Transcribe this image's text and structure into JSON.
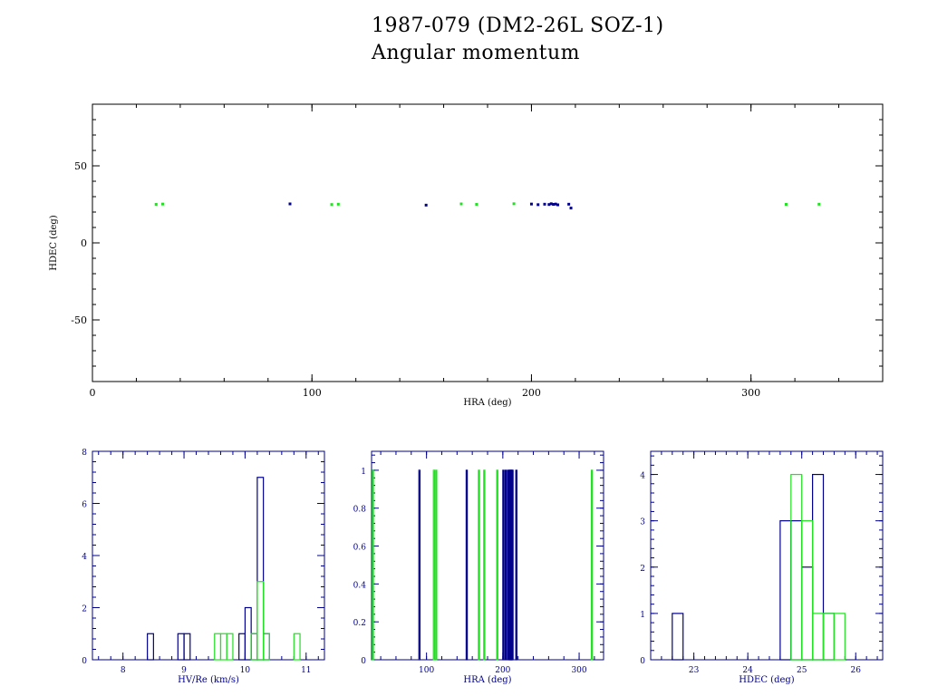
{
  "title": "1987-079 (DM2-26L SOZ-1)",
  "subtitle": "Angular momentum",
  "colors": {
    "series_a": "#00008c",
    "series_b": "#22e022",
    "main_axes": "#000000",
    "hist_axes": "#00008c"
  },
  "chart_data": [
    {
      "id": "scatter",
      "type": "scatter",
      "xlabel": "HRA (deg)",
      "ylabel": "HDEC (deg)",
      "xlim": [
        0,
        360
      ],
      "ylim": [
        -90,
        90
      ],
      "xticks": [
        0,
        100,
        200,
        300
      ],
      "yticks": [
        -50,
        0,
        50
      ],
      "series": [
        {
          "color": "#00008c",
          "x": [
            90,
            152,
            200,
            203,
            206,
            208,
            209,
            210,
            211,
            212,
            217,
            218
          ],
          "y": [
            25.3,
            24.5,
            25.2,
            24.8,
            25.1,
            24.9,
            25.4,
            25.0,
            25.2,
            24.7,
            25.1,
            22.6
          ]
        },
        {
          "color": "#22e022",
          "x": [
            29,
            32,
            109,
            112,
            168,
            175,
            192,
            316,
            331
          ],
          "y": [
            25.0,
            25.2,
            24.9,
            25.1,
            25.3,
            25.0,
            25.4,
            25.0,
            25.1
          ]
        }
      ]
    },
    {
      "id": "hist_hv",
      "type": "bar",
      "xlabel": "HV/Re (km/s)",
      "xlim": [
        7.5,
        11.3
      ],
      "ylim": [
        0,
        8
      ],
      "xticks": [
        8,
        9,
        10,
        11
      ],
      "yticks": [
        0,
        2,
        4,
        6,
        8
      ],
      "bin_width": 0.1,
      "series": [
        {
          "color": "#00008c",
          "bins": [
            [
              8.4,
              1
            ],
            [
              8.9,
              1
            ],
            [
              9.0,
              1
            ],
            [
              9.9,
              1
            ],
            [
              10.0,
              2
            ],
            [
              10.1,
              1
            ],
            [
              10.2,
              7
            ],
            [
              10.3,
              1
            ]
          ]
        },
        {
          "color": "#22e022",
          "bins": [
            [
              9.5,
              1
            ],
            [
              9.6,
              1
            ],
            [
              9.7,
              1
            ],
            [
              10.1,
              1
            ],
            [
              10.2,
              3
            ],
            [
              10.3,
              1
            ],
            [
              10.8,
              1
            ]
          ]
        }
      ]
    },
    {
      "id": "hist_hra",
      "type": "bar",
      "xlabel": "HRA (deg)",
      "xlim": [
        28,
        332
      ],
      "ylim": [
        0,
        1.1
      ],
      "xticks": [
        100,
        200,
        300
      ],
      "yticks": [
        0,
        0.2,
        0.4,
        0.6,
        0.8,
        1
      ],
      "bin_width": 1,
      "series": [
        {
          "color": "#00008c",
          "bins": [
            [
              90,
              1
            ],
            [
              152,
              1
            ],
            [
              200,
              1
            ],
            [
              203,
              1
            ],
            [
              206,
              1
            ],
            [
              208,
              1
            ],
            [
              209,
              1
            ],
            [
              210,
              1
            ],
            [
              211,
              1
            ],
            [
              212,
              1
            ],
            [
              217,
              1
            ]
          ]
        },
        {
          "color": "#22e022",
          "bins": [
            [
              29,
              1
            ],
            [
              109,
              1
            ],
            [
              112,
              1
            ],
            [
              168,
              1
            ],
            [
              175,
              1
            ],
            [
              192,
              1
            ],
            [
              316,
              1
            ]
          ]
        }
      ]
    },
    {
      "id": "hist_hdec",
      "type": "bar",
      "xlabel": "HDEC (deg)",
      "xlim": [
        22.2,
        26.5
      ],
      "ylim": [
        0,
        4.5
      ],
      "xticks": [
        23,
        24,
        25,
        26
      ],
      "yticks": [
        0,
        1,
        2,
        3,
        4
      ],
      "bin_width": 0.2,
      "series": [
        {
          "color": "#00008c",
          "bins": [
            [
              22.6,
              1
            ],
            [
              24.6,
              3
            ],
            [
              24.8,
              3
            ],
            [
              25.0,
              2
            ],
            [
              25.2,
              4
            ],
            [
              25.4,
              1
            ]
          ]
        },
        {
          "color": "#22e022",
          "bins": [
            [
              24.8,
              4
            ],
            [
              25.0,
              3
            ],
            [
              25.2,
              1
            ],
            [
              25.4,
              1
            ],
            [
              25.6,
              1
            ]
          ]
        }
      ]
    }
  ]
}
